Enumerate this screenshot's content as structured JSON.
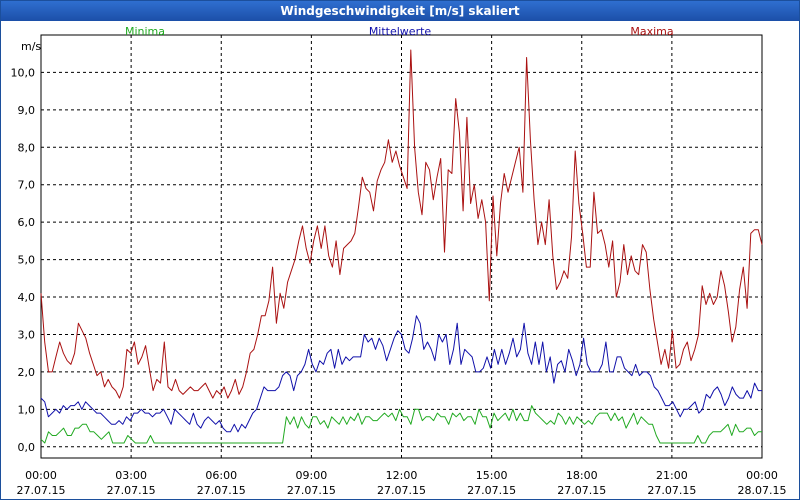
{
  "window": {
    "title": "Windgeschwindigkeit [m/s] skaliert"
  },
  "colors": {
    "minima": "#22aa22",
    "mittel": "#1111aa",
    "maxima": "#aa1111",
    "grid": "#000000"
  },
  "chart_data": {
    "type": "line",
    "title": "Windgeschwindigkeit [m/s] skaliert",
    "ylabel": "m/s",
    "ylim": [
      -0.3,
      11.0
    ],
    "yticks": [
      0,
      1,
      2,
      3,
      4,
      5,
      6,
      7,
      8,
      9,
      10
    ],
    "ytick_labels": [
      "0,0",
      "1,0",
      "2,0",
      "3,0",
      "4,0",
      "5,0",
      "6,0",
      "7,0",
      "8,0",
      "9,0",
      "10,0"
    ],
    "xlim": [
      0,
      24
    ],
    "xticks": [
      0,
      3,
      6,
      9,
      12,
      15,
      18,
      21,
      24
    ],
    "xtick_labels": [
      [
        "00:00",
        "27.07.15"
      ],
      [
        "03:00",
        "27.07.15"
      ],
      [
        "06:00",
        "27.07.15"
      ],
      [
        "09:00",
        "27.07.15"
      ],
      [
        "12:00",
        "27.07.15"
      ],
      [
        "15:00",
        "27.07.15"
      ],
      [
        "18:00",
        "27.07.15"
      ],
      [
        "21:00",
        "27.07.15"
      ],
      [
        "00:00",
        "28.07.15"
      ]
    ],
    "grid": true,
    "legend_placement": "top",
    "series": [
      {
        "name": "Minima",
        "color": "#22aa22",
        "values": [
          0.2,
          0.1,
          0.4,
          0.3,
          0.3,
          0.4,
          0.5,
          0.3,
          0.3,
          0.5,
          0.5,
          0.6,
          0.6,
          0.4,
          0.4,
          0.3,
          0.2,
          0.3,
          0.4,
          0.1,
          0.1,
          0.1,
          0.1,
          0.3,
          0.2,
          0.1,
          0.1,
          0.1,
          0.1,
          0.3,
          0.1,
          0.1,
          0.1,
          0.1,
          0.1,
          0.1,
          0.1,
          0.1,
          0.1,
          0.1,
          0.1,
          0.1,
          0.1,
          0.1,
          0.1,
          0.1,
          0.1,
          0.1,
          0.1,
          0.1,
          0.1,
          0.1,
          0.1,
          0.1,
          0.1,
          0.1,
          0.1,
          0.1,
          0.1,
          0.1,
          0.1,
          0.1,
          0.1,
          0.1,
          0.1,
          0.8,
          0.6,
          0.8,
          0.5,
          0.8,
          0.6,
          0.5,
          0.8,
          0.8,
          0.6,
          0.7,
          0.5,
          0.8,
          0.7,
          0.6,
          0.8,
          0.6,
          0.8,
          0.7,
          0.9,
          0.6,
          0.8,
          0.8,
          0.7,
          0.7,
          0.8,
          0.9,
          0.8,
          0.9,
          0.7,
          1.0,
          0.8,
          0.8,
          0.6,
          1.0,
          1.0,
          0.7,
          0.8,
          0.8,
          0.7,
          0.9,
          0.8,
          0.8,
          0.6,
          0.9,
          0.8,
          0.9,
          0.7,
          0.8,
          0.8,
          0.6,
          1.0,
          0.8,
          0.8,
          0.5,
          0.9,
          0.7,
          0.8,
          0.9,
          0.7,
          1.0,
          0.7,
          0.9,
          0.7,
          0.7,
          1.1,
          0.9,
          0.8,
          0.7,
          0.6,
          0.7,
          0.6,
          0.9,
          0.8,
          0.6,
          0.8,
          0.6,
          0.8,
          0.7,
          0.6,
          0.7,
          0.6,
          0.8,
          0.9,
          0.9,
          0.9,
          0.7,
          0.9,
          0.7,
          0.8,
          0.5,
          0.7,
          0.9,
          0.6,
          0.8,
          0.7,
          0.6,
          0.6,
          0.3,
          0.1,
          0.1,
          0.1,
          0.1,
          0.1,
          0.1,
          0.1,
          0.1,
          0.1,
          0.1,
          0.3,
          0.1,
          0.1,
          0.3,
          0.4,
          0.4,
          0.4,
          0.5,
          0.6,
          0.3,
          0.6,
          0.4,
          0.4,
          0.5,
          0.5,
          0.3,
          0.4,
          0.4
        ]
      },
      {
        "name": "Mittelwerte",
        "color": "#1111aa",
        "values": [
          1.3,
          1.2,
          0.8,
          0.9,
          1.0,
          0.9,
          1.1,
          1.0,
          1.1,
          1.1,
          1.2,
          1.0,
          1.2,
          1.1,
          1.0,
          0.9,
          0.9,
          0.8,
          0.7,
          0.6,
          0.6,
          0.7,
          0.6,
          0.8,
          0.7,
          0.9,
          0.9,
          1.0,
          0.9,
          0.9,
          0.8,
          0.9,
          0.9,
          1.0,
          0.8,
          0.6,
          1.0,
          0.9,
          0.8,
          0.7,
          0.6,
          0.9,
          0.6,
          0.5,
          0.7,
          0.8,
          0.7,
          0.6,
          0.7,
          0.5,
          0.4,
          0.4,
          0.6,
          0.4,
          0.6,
          0.5,
          0.7,
          0.9,
          1.0,
          1.3,
          1.6,
          1.5,
          1.5,
          1.5,
          1.6,
          1.9,
          2.0,
          1.9,
          1.5,
          1.9,
          2.0,
          2.2,
          2.6,
          2.2,
          2.0,
          2.3,
          2.2,
          2.5,
          2.6,
          2.1,
          2.6,
          2.2,
          2.4,
          2.3,
          2.4,
          2.4,
          2.4,
          3.0,
          2.8,
          2.9,
          2.6,
          2.9,
          2.7,
          2.3,
          2.6,
          2.9,
          3.1,
          3.0,
          2.6,
          2.5,
          2.9,
          3.5,
          3.3,
          2.6,
          2.8,
          2.6,
          2.3,
          3.0,
          2.8,
          3.0,
          2.2,
          2.6,
          3.3,
          2.2,
          2.6,
          2.5,
          2.4,
          2.0,
          2.0,
          2.1,
          2.4,
          2.1,
          2.6,
          2.2,
          2.6,
          2.2,
          2.5,
          2.9,
          2.4,
          2.6,
          3.3,
          2.5,
          2.2,
          2.8,
          2.2,
          2.8,
          2.0,
          2.4,
          1.7,
          2.2,
          2.3,
          2.0,
          2.6,
          2.3,
          1.9,
          2.2,
          2.9,
          2.2,
          2.0,
          2.0,
          2.0,
          2.2,
          2.8,
          2.0,
          2.0,
          2.4,
          2.4,
          2.1,
          2.0,
          1.9,
          2.2,
          1.9,
          2.0,
          2.0,
          1.9,
          1.6,
          1.5,
          1.3,
          1.1,
          1.1,
          1.2,
          1.0,
          0.8,
          1.0,
          1.0,
          1.1,
          1.2,
          0.9,
          1.0,
          1.4,
          1.3,
          1.5,
          1.6,
          1.4,
          1.1,
          1.3,
          1.6,
          1.4,
          1.3,
          1.3,
          1.5,
          1.3,
          1.7,
          1.5,
          1.5
        ]
      },
      {
        "name": "Maxima",
        "color": "#aa1111",
        "values": [
          4.1,
          2.8,
          2.0,
          2.0,
          2.4,
          2.8,
          2.5,
          2.3,
          2.2,
          2.5,
          3.3,
          3.1,
          2.9,
          2.5,
          2.2,
          1.9,
          2.0,
          1.6,
          1.8,
          1.6,
          1.5,
          1.3,
          1.6,
          2.6,
          2.5,
          2.8,
          2.2,
          2.4,
          2.7,
          2.1,
          1.5,
          1.8,
          1.7,
          2.8,
          1.6,
          1.5,
          1.8,
          1.5,
          1.4,
          1.5,
          1.6,
          1.5,
          1.5,
          1.6,
          1.7,
          1.5,
          1.3,
          1.5,
          1.4,
          1.6,
          1.3,
          1.5,
          1.8,
          1.4,
          1.6,
          2.0,
          2.5,
          2.6,
          3.0,
          3.5,
          3.5,
          3.9,
          4.8,
          3.3,
          4.1,
          3.7,
          4.4,
          4.7,
          5.0,
          5.5,
          5.9,
          5.3,
          4.9,
          5.5,
          5.9,
          5.3,
          5.9,
          5.1,
          4.8,
          5.5,
          4.6,
          5.3,
          5.4,
          5.5,
          5.7,
          6.4,
          7.2,
          6.9,
          6.8,
          6.3,
          7.1,
          7.4,
          7.6,
          8.2,
          7.6,
          7.9,
          7.5,
          7.2,
          6.9,
          10.6,
          8.0,
          6.8,
          6.2,
          7.6,
          7.4,
          6.6,
          7.2,
          7.7,
          5.2,
          7.4,
          7.3,
          9.3,
          8.4,
          6.3,
          8.8,
          6.5,
          7.0,
          6.1,
          6.6,
          6.0,
          3.9,
          6.7,
          5.1,
          6.5,
          7.3,
          6.8,
          7.2,
          7.6,
          8.0,
          6.8,
          10.4,
          8.2,
          6.6,
          5.4,
          6.0,
          5.4,
          6.6,
          5.1,
          4.2,
          4.4,
          4.7,
          4.5,
          5.6,
          7.9,
          6.5,
          5.7,
          4.8,
          4.8,
          6.8,
          5.7,
          5.8,
          5.4,
          4.8,
          5.5,
          4.0,
          4.4,
          5.4,
          4.6,
          5.1,
          4.7,
          4.6,
          5.4,
          5.2,
          4.2,
          3.4,
          2.8,
          2.2,
          2.6,
          2.1,
          3.1,
          2.1,
          2.2,
          2.6,
          2.8,
          2.3,
          2.6,
          3.0,
          4.3,
          3.8,
          4.1,
          3.8,
          4.0,
          4.7,
          4.3,
          3.6,
          2.8,
          3.2,
          4.2,
          4.8,
          3.7,
          5.7,
          5.8,
          5.8,
          5.4
        ]
      }
    ]
  }
}
